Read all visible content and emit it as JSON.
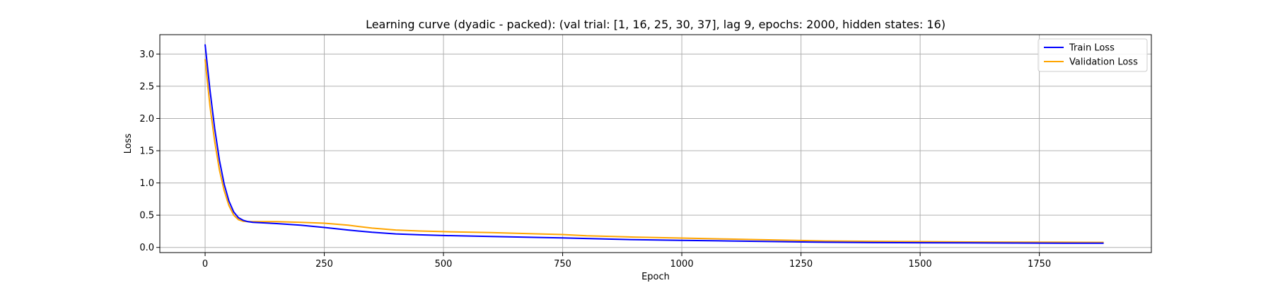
{
  "chart_data": {
    "type": "line",
    "title": "Learning curve (dyadic - packed): (val trial: [1, 16, 25, 30, 37], lag 9, epochs: 2000, hidden states: 16)",
    "xlabel": "Epoch",
    "ylabel": "Loss",
    "xlim": [
      -95,
      1985
    ],
    "ylim": [
      -0.08,
      3.3
    ],
    "xticks": [
      0,
      250,
      500,
      750,
      1000,
      1250,
      1500,
      1750
    ],
    "yticks": [
      0.0,
      0.5,
      1.0,
      1.5,
      2.0,
      2.5,
      3.0
    ],
    "xtick_labels": [
      "0",
      "250",
      "500",
      "750",
      "1000",
      "1250",
      "1500",
      "1750"
    ],
    "ytick_labels": [
      "0.0",
      "0.5",
      "1.0",
      "1.5",
      "2.0",
      "2.5",
      "3.0"
    ],
    "grid": true,
    "legend_position": "top-right",
    "series": [
      {
        "name": "Train Loss",
        "color": "#0000ff",
        "x": [
          0,
          10,
          20,
          30,
          40,
          50,
          60,
          70,
          80,
          90,
          100,
          150,
          200,
          250,
          300,
          350,
          400,
          450,
          500,
          600,
          700,
          750,
          800,
          900,
          1000,
          1100,
          1200,
          1300,
          1400,
          1500,
          1600,
          1700,
          1800,
          1885
        ],
        "y": [
          3.15,
          2.45,
          1.85,
          1.35,
          0.98,
          0.72,
          0.55,
          0.46,
          0.42,
          0.4,
          0.39,
          0.37,
          0.345,
          0.31,
          0.27,
          0.235,
          0.21,
          0.195,
          0.185,
          0.17,
          0.155,
          0.148,
          0.138,
          0.12,
          0.11,
          0.1,
          0.09,
          0.08,
          0.075,
          0.072,
          0.07,
          0.068,
          0.066,
          0.065
        ]
      },
      {
        "name": "Validation Loss",
        "color": "#ffa500",
        "x": [
          0,
          10,
          20,
          30,
          40,
          50,
          60,
          70,
          80,
          90,
          100,
          150,
          200,
          250,
          300,
          350,
          400,
          450,
          500,
          600,
          700,
          750,
          800,
          900,
          1000,
          1100,
          1200,
          1300,
          1400,
          1500,
          1600,
          1700,
          1800,
          1885
        ],
        "y": [
          2.92,
          2.2,
          1.65,
          1.2,
          0.88,
          0.65,
          0.5,
          0.43,
          0.405,
          0.4,
          0.4,
          0.4,
          0.39,
          0.375,
          0.345,
          0.3,
          0.27,
          0.255,
          0.245,
          0.23,
          0.21,
          0.2,
          0.18,
          0.16,
          0.145,
          0.13,
          0.115,
          0.1,
          0.095,
          0.09,
          0.085,
          0.082,
          0.08,
          0.078
        ]
      }
    ]
  }
}
